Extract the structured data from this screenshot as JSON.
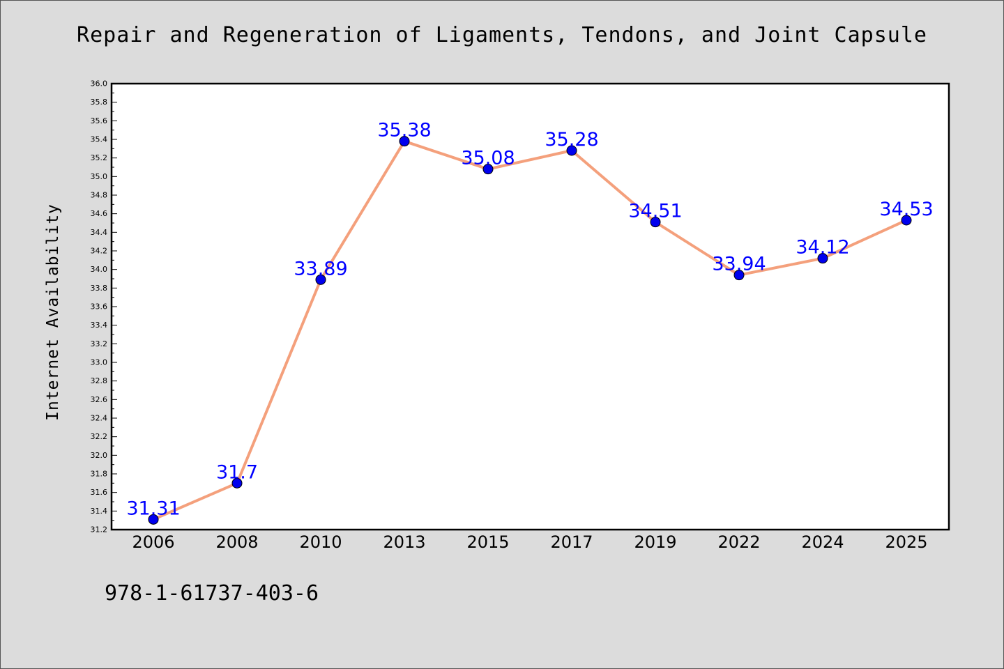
{
  "chart_data": {
    "type": "line",
    "title": "Repair and Regeneration of Ligaments, Tendons, and Joint Capsule",
    "ylabel": "Internet Availability",
    "xlabel": "",
    "categories": [
      "2006",
      "2008",
      "2010",
      "2013",
      "2015",
      "2017",
      "2019",
      "2022",
      "2024",
      "2025"
    ],
    "values": [
      31.31,
      31.7,
      33.89,
      35.38,
      35.08,
      35.28,
      34.51,
      33.94,
      34.12,
      34.53
    ],
    "value_labels": [
      "31.31",
      "31.7",
      "33.89",
      "35.38",
      "35.08",
      "35.28",
      "34.51",
      "33.94",
      "34.12",
      "34.53"
    ],
    "ylim": [
      31.2,
      36.0
    ],
    "ytick_step": 0.2,
    "grid": false,
    "legend": "none",
    "colors": {
      "line": "#f4a07c",
      "marker": "#0000ee",
      "value_label": "#0000ff",
      "plot_background": "#ffffff",
      "page_background": "#dcdcdc"
    }
  },
  "footer": {
    "isbn": "978-1-61737-403-6"
  }
}
